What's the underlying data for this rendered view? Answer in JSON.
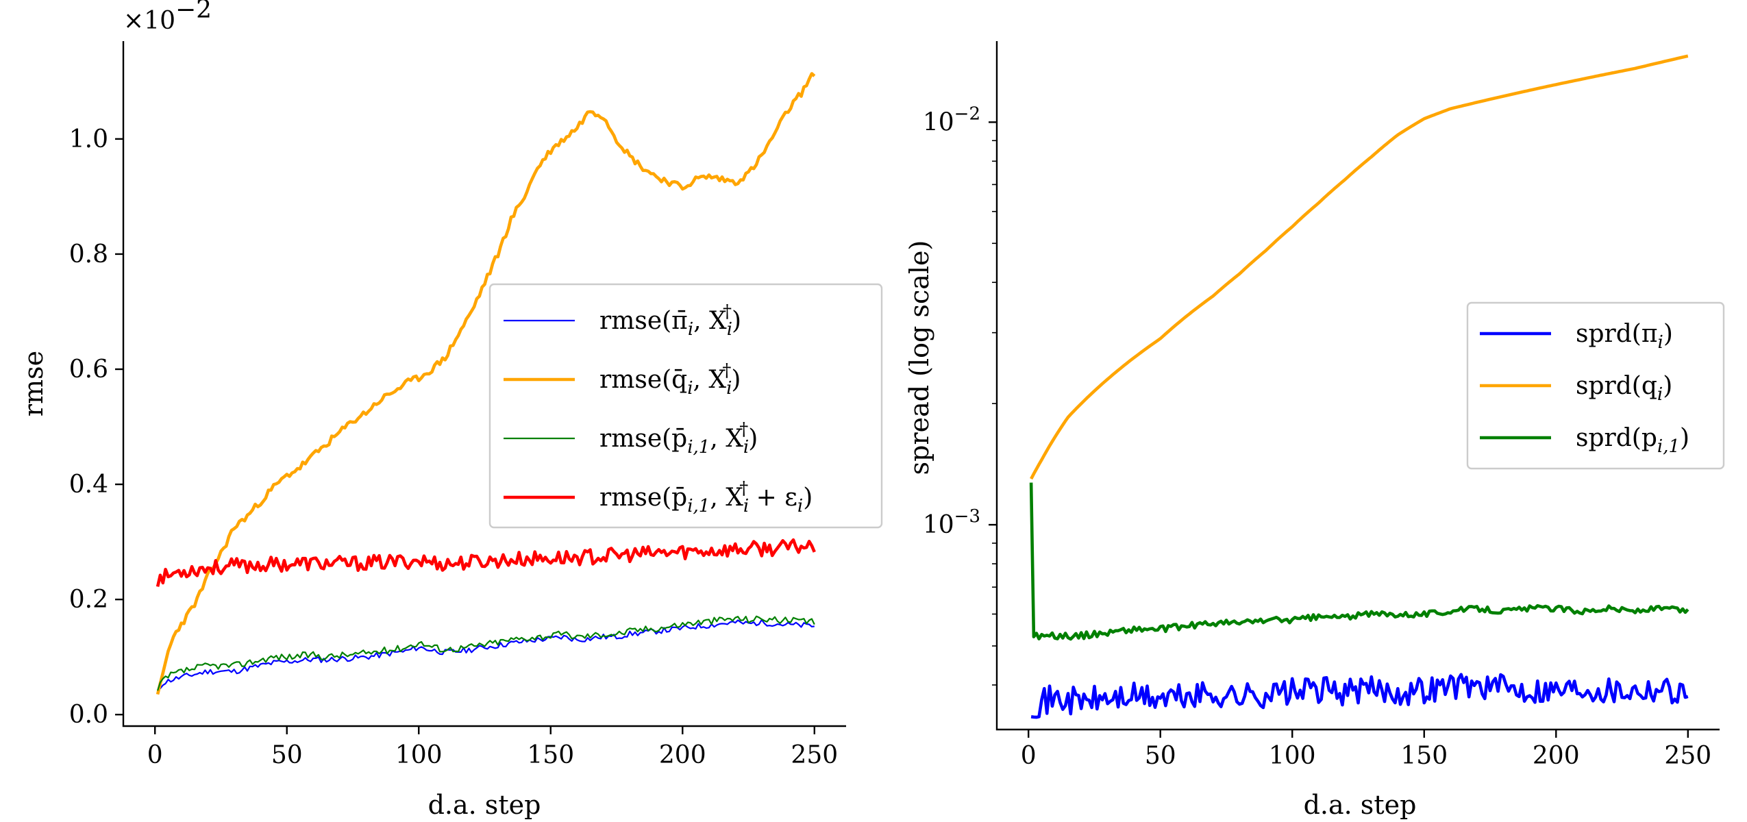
{
  "chart_data": [
    {
      "type": "line",
      "xlabel": "d.a. step",
      "ylabel": "rmse",
      "offset_label": "×10",
      "offset_exponent": "−2",
      "xlim": [
        -12,
        262
      ],
      "ylim": [
        -0.02,
        1.17
      ],
      "xticks": [
        0,
        50,
        100,
        150,
        200,
        250
      ],
      "xtick_labels": [
        "0",
        "50",
        "100",
        "150",
        "200",
        "250"
      ],
      "yticks": [
        0.0,
        0.2,
        0.4,
        0.6,
        0.8,
        1.0
      ],
      "ytick_labels": [
        "0.0",
        "0.2",
        "0.4",
        "0.6",
        "0.8",
        "1.0"
      ],
      "legend_position": "center-right",
      "series": [
        {
          "name": "rmse(π̄ᵢ, Xᵢ†)",
          "legend_main": "rmse(π̄",
          "legend_sub1": "i",
          "legend_mid": ", X",
          "legend_sub2": "i",
          "legend_sup": "†",
          "legend_tail": ")",
          "color": "#0000ff",
          "width": "thin",
          "noise": 0.005,
          "seed": 11,
          "x": [
            1,
            3,
            6,
            10,
            15,
            20,
            25,
            30,
            35,
            40,
            45,
            50,
            55,
            60,
            65,
            70,
            75,
            80,
            85,
            90,
            95,
            100,
            105,
            110,
            115,
            120,
            125,
            130,
            135,
            140,
            145,
            150,
            155,
            160,
            165,
            170,
            175,
            180,
            185,
            190,
            195,
            200,
            205,
            210,
            215,
            220,
            225,
            230,
            235,
            240,
            245,
            250
          ],
          "y": [
            0.04,
            0.055,
            0.06,
            0.065,
            0.07,
            0.075,
            0.075,
            0.075,
            0.08,
            0.085,
            0.09,
            0.092,
            0.094,
            0.096,
            0.095,
            0.097,
            0.098,
            0.1,
            0.103,
            0.107,
            0.11,
            0.117,
            0.112,
            0.108,
            0.11,
            0.113,
            0.117,
            0.12,
            0.124,
            0.127,
            0.13,
            0.132,
            0.135,
            0.13,
            0.132,
            0.135,
            0.135,
            0.14,
            0.142,
            0.145,
            0.147,
            0.15,
            0.153,
            0.155,
            0.158,
            0.16,
            0.158,
            0.16,
            0.158,
            0.156,
            0.155,
            0.154
          ]
        },
        {
          "name": "rmse(q̄ᵢ, Xᵢ†)",
          "legend_main": "rmse(q̄",
          "legend_sub1": "i",
          "legend_mid": ", X",
          "legend_sub2": "i",
          "legend_sup": "†",
          "legend_tail": ")",
          "color": "#ffa500",
          "width": "thick",
          "noise": 0.006,
          "seed": 23,
          "x": [
            1,
            3,
            5,
            8,
            12,
            16,
            20,
            25,
            30,
            35,
            40,
            45,
            50,
            55,
            60,
            65,
            70,
            75,
            80,
            85,
            90,
            95,
            100,
            105,
            110,
            115,
            120,
            125,
            130,
            135,
            140,
            145,
            150,
            155,
            160,
            165,
            170,
            175,
            180,
            185,
            190,
            195,
            200,
            205,
            210,
            215,
            220,
            225,
            230,
            235,
            240,
            245,
            250
          ],
          "y": [
            0.03,
            0.07,
            0.11,
            0.145,
            0.17,
            0.2,
            0.24,
            0.28,
            0.325,
            0.345,
            0.37,
            0.395,
            0.415,
            0.43,
            0.45,
            0.47,
            0.49,
            0.51,
            0.525,
            0.545,
            0.56,
            0.575,
            0.585,
            0.6,
            0.62,
            0.66,
            0.7,
            0.75,
            0.8,
            0.86,
            0.9,
            0.95,
            0.98,
            1.0,
            1.02,
            1.05,
            1.04,
            1.0,
            0.97,
            0.95,
            0.935,
            0.925,
            0.915,
            0.93,
            0.935,
            0.93,
            0.925,
            0.94,
            0.97,
            1.01,
            1.05,
            1.08,
            1.115
          ]
        },
        {
          "name": "rmse(p̄ᵢ,₁, Xᵢ†)",
          "legend_main": "rmse(p̄",
          "legend_sub1": "i,1",
          "legend_mid": ", X",
          "legend_sub2": "i",
          "legend_sup": "†",
          "legend_tail": ")",
          "color": "#008000",
          "width": "thin",
          "noise": 0.006,
          "seed": 37,
          "x": [
            1,
            3,
            6,
            10,
            15,
            20,
            25,
            30,
            35,
            40,
            45,
            50,
            55,
            60,
            65,
            70,
            75,
            80,
            85,
            90,
            95,
            100,
            105,
            110,
            115,
            120,
            125,
            130,
            135,
            140,
            145,
            150,
            155,
            160,
            165,
            170,
            175,
            180,
            185,
            190,
            195,
            200,
            205,
            210,
            215,
            220,
            225,
            230,
            235,
            240,
            245,
            250
          ],
          "y": [
            0.04,
            0.06,
            0.068,
            0.075,
            0.08,
            0.085,
            0.085,
            0.085,
            0.09,
            0.095,
            0.1,
            0.1,
            0.102,
            0.104,
            0.1,
            0.103,
            0.104,
            0.107,
            0.11,
            0.113,
            0.117,
            0.125,
            0.118,
            0.113,
            0.115,
            0.118,
            0.122,
            0.126,
            0.13,
            0.133,
            0.135,
            0.137,
            0.14,
            0.135,
            0.137,
            0.14,
            0.14,
            0.145,
            0.148,
            0.15,
            0.153,
            0.157,
            0.16,
            0.162,
            0.165,
            0.167,
            0.165,
            0.167,
            0.165,
            0.163,
            0.162,
            0.16
          ]
        },
        {
          "name": "rmse(p̄ᵢ,₁, Xᵢ† + εᵢ)",
          "legend_main": "rmse(p̄",
          "legend_sub1": "i,1",
          "legend_mid": ", X",
          "legend_sub2": "i",
          "legend_sup": "†",
          "legend_tail": " + ε",
          "legend_sub3": "i",
          "legend_end": ")",
          "color": "#ff0000",
          "width": "thick",
          "noise": 0.013,
          "seed": 53,
          "x": [
            1,
            10,
            20,
            30,
            40,
            50,
            60,
            70,
            80,
            90,
            100,
            110,
            120,
            130,
            140,
            150,
            160,
            170,
            180,
            190,
            200,
            210,
            220,
            230,
            240,
            250
          ],
          "y": [
            0.235,
            0.25,
            0.255,
            0.258,
            0.26,
            0.262,
            0.263,
            0.262,
            0.263,
            0.265,
            0.268,
            0.262,
            0.265,
            0.268,
            0.27,
            0.272,
            0.273,
            0.275,
            0.278,
            0.28,
            0.283,
            0.285,
            0.287,
            0.288,
            0.29,
            0.295
          ]
        }
      ]
    },
    {
      "type": "line",
      "xlabel": "d.a. step",
      "ylabel": "spread (log scale)",
      "yscale": "log",
      "xlim": [
        -12,
        262
      ],
      "ylim": [
        0.00031,
        0.0159
      ],
      "xticks": [
        0,
        50,
        100,
        150,
        200,
        250
      ],
      "xtick_labels": [
        "0",
        "50",
        "100",
        "150",
        "200",
        "250"
      ],
      "yticks": [
        0.001,
        0.01
      ],
      "ytick_base": "10",
      "ytick_exponents": [
        "−3",
        "−2"
      ],
      "legend_position": "center-right",
      "series": [
        {
          "name": "sprd(πᵢ)",
          "legend_main": "sprd(π",
          "legend_sub1": "i",
          "legend_tail": ")",
          "color": "#0000ff",
          "width": "thick",
          "noise": 3e-05,
          "seed": 71,
          "x": [
            1,
            10,
            20,
            30,
            40,
            50,
            60,
            70,
            80,
            90,
            100,
            110,
            120,
            130,
            140,
            150,
            160,
            170,
            180,
            190,
            200,
            210,
            220,
            230,
            240,
            250
          ],
          "y": [
            0.00036,
            0.00037,
            0.000365,
            0.00037,
            0.000375,
            0.00037,
            0.000375,
            0.00038,
            0.000375,
            0.00038,
            0.000385,
            0.00039,
            0.000385,
            0.00039,
            0.000385,
            0.00039,
            0.0004,
            0.0004,
            0.000395,
            0.00039,
            0.00039,
            0.000395,
            0.00039,
            0.00039,
            0.000395,
            0.00038
          ]
        },
        {
          "name": "sprd(qᵢ)",
          "legend_main": "sprd(q",
          "legend_sub1": "i",
          "legend_tail": ")",
          "color": "#ffa500",
          "width": "thick",
          "noise": 0,
          "seed": 0,
          "x": [
            1,
            5,
            10,
            15,
            20,
            25,
            30,
            40,
            50,
            60,
            70,
            80,
            90,
            100,
            110,
            120,
            130,
            140,
            150,
            160,
            170,
            180,
            190,
            200,
            210,
            220,
            230,
            240,
            250
          ],
          "y": [
            0.0013,
            0.00145,
            0.00165,
            0.00185,
            0.002,
            0.00215,
            0.0023,
            0.0026,
            0.0029,
            0.0033,
            0.0037,
            0.0042,
            0.0048,
            0.0055,
            0.0063,
            0.0072,
            0.0082,
            0.0093,
            0.0102,
            0.0108,
            0.0112,
            0.0116,
            0.012,
            0.0124,
            0.0128,
            0.0132,
            0.0136,
            0.0141,
            0.0146
          ]
        },
        {
          "name": "sprd(pᵢ,₁)",
          "legend_main": "sprd(p",
          "legend_sub1": "i,1",
          "legend_tail": ")",
          "color": "#008000",
          "width": "thick",
          "noise": 1e-05,
          "seed": 89,
          "x": [
            1,
            2,
            5,
            10,
            20,
            30,
            40,
            50,
            60,
            70,
            80,
            90,
            100,
            110,
            120,
            130,
            140,
            150,
            160,
            170,
            180,
            190,
            200,
            210,
            220,
            230,
            240,
            250
          ],
          "y": [
            0.00128,
            0.00053,
            0.00053,
            0.00053,
            0.00053,
            0.00054,
            0.00055,
            0.00055,
            0.00056,
            0.00057,
            0.00057,
            0.00058,
            0.00058,
            0.00059,
            0.00059,
            0.0006,
            0.0006,
            0.0006,
            0.00061,
            0.00062,
            0.00061,
            0.00062,
            0.00062,
            0.00061,
            0.00062,
            0.00061,
            0.00062,
            0.00061
          ]
        }
      ]
    }
  ]
}
